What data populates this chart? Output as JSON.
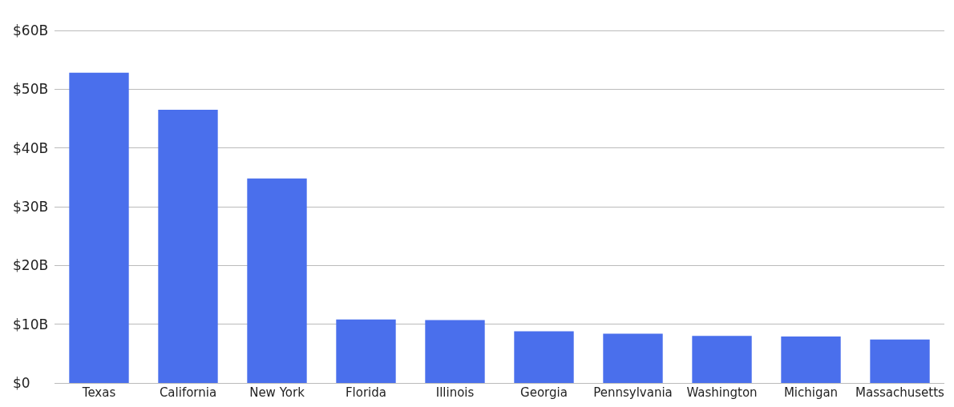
{
  "chart_data": {
    "type": "bar",
    "categories": [
      "Texas",
      "California",
      "New York",
      "Florida",
      "Illinois",
      "Georgia",
      "Pennsylvania",
      "Washington",
      "Michigan",
      "Massachusetts"
    ],
    "values": [
      52.8,
      46.5,
      34.8,
      10.8,
      10.7,
      8.8,
      8.4,
      8.0,
      7.9,
      7.4
    ],
    "color": "#4a6fec",
    "ylim": [
      0,
      60
    ],
    "yticks": [
      {
        "value": 0,
        "label": "$0"
      },
      {
        "value": 10,
        "label": "$10B"
      },
      {
        "value": 20,
        "label": "$20B"
      },
      {
        "value": 30,
        "label": "$30B"
      },
      {
        "value": 40,
        "label": "$40B"
      },
      {
        "value": 50,
        "label": "$50B"
      },
      {
        "value": 60,
        "label": "$60B"
      }
    ],
    "grid": "y"
  }
}
